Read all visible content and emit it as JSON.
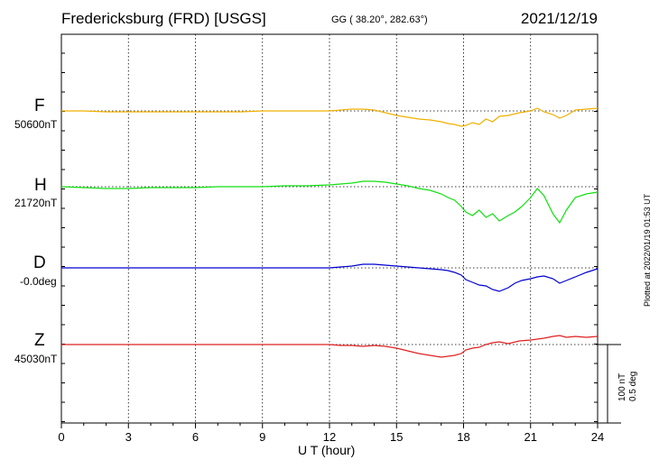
{
  "header": {
    "title": "Fredericksburg (FRD)  [USGS]",
    "coords": "GG ( 38.20°, 282.63°)",
    "date": "2021/12/19"
  },
  "footer": {
    "plotted": "Plotted at 2022/01/19 01:53 UT"
  },
  "scale_bar": {
    "label_nt": "100 nT",
    "label_deg": "0.5 deg"
  },
  "colors": {
    "F": "#f0b000",
    "H": "#10e010",
    "D": "#0000d0",
    "Z": "#e02020"
  },
  "chart_data": {
    "type": "line",
    "title": "Fredericksburg (FRD)  [USGS]",
    "xlabel": "U T (hour)",
    "ylabel": "",
    "xlim": [
      0,
      24
    ],
    "xticks": [
      0,
      3,
      6,
      9,
      12,
      15,
      18,
      21,
      24
    ],
    "grid": true,
    "series": [
      {
        "name": "F",
        "baseline_label": "50600nT",
        "color": "#f0b000",
        "x": [
          0,
          1,
          2,
          3,
          4,
          5,
          6,
          7,
          8,
          9,
          10,
          11,
          12,
          12.5,
          13,
          13.5,
          14,
          14.5,
          15,
          15.5,
          16,
          16.5,
          17,
          17.3,
          17.6,
          17.9,
          18.1,
          18.4,
          18.7,
          19,
          19.3,
          19.6,
          20,
          20.5,
          21,
          21.3,
          21.6,
          22,
          22.3,
          22.6,
          23,
          23.5,
          24
        ],
        "values": [
          0,
          0,
          -1,
          -1,
          -1,
          -1,
          -1,
          -1,
          -1,
          0,
          0,
          0,
          0,
          1,
          2,
          2,
          1,
          -2,
          -5,
          -7,
          -9,
          -10,
          -12,
          -14,
          -15,
          -17,
          -16,
          -13,
          -15,
          -9,
          -12,
          -6,
          -5,
          -2,
          0,
          3,
          -1,
          -4,
          -8,
          -5,
          1,
          2,
          3
        ]
      },
      {
        "name": "H",
        "baseline_label": "21720nT",
        "color": "#10e010",
        "x": [
          0,
          1,
          2,
          3,
          4,
          5,
          6,
          7,
          8,
          9,
          10,
          11,
          12,
          12.5,
          13,
          13.5,
          14,
          14.5,
          15,
          15.5,
          16,
          16.5,
          17,
          17.3,
          17.6,
          17.9,
          18.1,
          18.4,
          18.7,
          19,
          19.3,
          19.6,
          20,
          20.3,
          20.6,
          21,
          21.3,
          21.6,
          22,
          22.3,
          22.6,
          23,
          23.5,
          24
        ],
        "values": [
          0,
          -1,
          -2,
          -2,
          -1,
          -1,
          -1,
          0,
          0,
          0,
          1,
          1,
          2,
          3,
          4,
          6,
          6,
          5,
          3,
          1,
          -2,
          -4,
          -8,
          -12,
          -15,
          -22,
          -28,
          -32,
          -26,
          -34,
          -30,
          -38,
          -32,
          -28,
          -22,
          -12,
          -2,
          -10,
          -30,
          -40,
          -26,
          -12,
          -8,
          -6
        ]
      },
      {
        "name": "D",
        "baseline_label": "-0.0deg",
        "color": "#0000d0",
        "x": [
          0,
          1,
          2,
          3,
          4,
          5,
          6,
          7,
          8,
          9,
          10,
          11,
          12,
          12.5,
          13,
          13.5,
          14,
          14.5,
          15,
          15.5,
          16,
          16.5,
          17,
          17.3,
          17.6,
          17.9,
          18.1,
          18.4,
          18.7,
          19,
          19.3,
          19.6,
          20,
          20.3,
          20.6,
          21,
          21.3,
          21.6,
          22,
          22.3,
          22.6,
          23,
          23.5,
          24
        ],
        "values": [
          0,
          0,
          0,
          0,
          0,
          0,
          0,
          0,
          0,
          0,
          0,
          0,
          0,
          1,
          2,
          4,
          4,
          3,
          2,
          1,
          0,
          -1,
          -2,
          -3,
          -5,
          -8,
          -13,
          -16,
          -19,
          -20,
          -24,
          -26,
          -22,
          -17,
          -14,
          -12,
          -10,
          -9,
          -12,
          -17,
          -14,
          -10,
          -5,
          -1
        ]
      },
      {
        "name": "Z",
        "baseline_label": "45030nT",
        "color": "#e02020",
        "x": [
          0,
          1,
          2,
          3,
          4,
          5,
          6,
          7,
          8,
          9,
          10,
          11,
          12,
          12.5,
          13,
          13.5,
          14,
          14.5,
          15,
          15.5,
          16,
          16.5,
          17,
          17.3,
          17.6,
          17.9,
          18.1,
          18.4,
          18.7,
          19,
          19.3,
          19.6,
          20,
          20.5,
          21,
          21.3,
          21.6,
          22,
          22.3,
          22.6,
          23,
          23.5,
          24
        ],
        "values": [
          0,
          0,
          0,
          0,
          0,
          0,
          0,
          0,
          0,
          0,
          0,
          0,
          0,
          -1,
          -1,
          -2,
          -1,
          -2,
          -4,
          -7,
          -10,
          -12,
          -14,
          -13,
          -12,
          -10,
          -6,
          -4,
          -3,
          0,
          2,
          3,
          1,
          4,
          5,
          6,
          7,
          9,
          10,
          8,
          9,
          8,
          9
        ]
      }
    ]
  }
}
